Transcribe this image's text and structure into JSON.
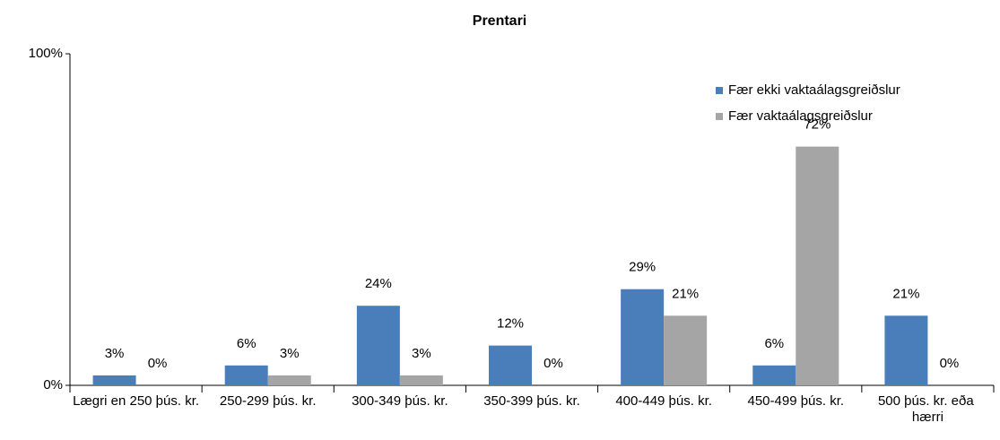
{
  "chart_data": {
    "type": "bar",
    "title": "Prentari",
    "categories": [
      "Lægri en 250 þús. kr.",
      "250-299 þús. kr.",
      "300-349 þús. kr.",
      "350-399 þús. kr.",
      "400-449 þús. kr.",
      "450-499 þús. kr.",
      "500 þús. kr. eða hærri"
    ],
    "series": [
      {
        "name": "Fær ekki vaktaálagsgreiðslur",
        "color": "#4a7ebb",
        "values": [
          3,
          6,
          24,
          12,
          29,
          6,
          21
        ],
        "value_labels": [
          "3%",
          "6%",
          "24%",
          "12%",
          "29%",
          "6%",
          "21%"
        ]
      },
      {
        "name": "Fær vaktaálagsgreiðslur",
        "color": "#a5a5a5",
        "values": [
          0,
          3,
          3,
          0,
          21,
          72,
          0
        ],
        "value_labels": [
          "0%",
          "3%",
          "3%",
          "0%",
          "21%",
          "72%",
          "0%"
        ]
      }
    ],
    "ylim": [
      0,
      100
    ],
    "yticks": [
      {
        "value": 0,
        "label": "0%"
      },
      {
        "value": 100,
        "label": "100%"
      }
    ],
    "legend": "top-right"
  }
}
